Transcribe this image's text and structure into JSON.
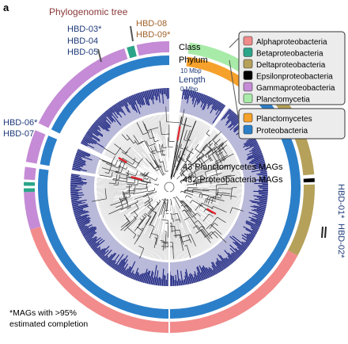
{
  "panel_letter": "a",
  "title": "Phylogenomic tree",
  "labels": {
    "hbd_top_left": [
      "HBD-03*",
      "HBD-04",
      "HBD-05"
    ],
    "hbd_top_right": [
      "HBD-08",
      "HBD-09*"
    ],
    "hbd_left": [
      "HBD-06*",
      "HBD-07"
    ],
    "hbd_right": [
      "HBD-01*",
      "HBD-02*"
    ]
  },
  "track_labels": {
    "class": "Class",
    "phylum": "Phylum",
    "length_max": "10 Mbp",
    "length": "Length",
    "length_min": "0 Mbp"
  },
  "legend_class": [
    {
      "label": "Alphaproteobacteria",
      "color": "#f28b8b"
    },
    {
      "label": "Betaproteobacteria",
      "color": "#2aa589"
    },
    {
      "label": "Deltaproteobacteria",
      "color": "#b5a15a"
    },
    {
      "label": "Epsilonproteobacteria",
      "color": "#000000"
    },
    {
      "label": "Gammaproteobacteria",
      "color": "#c58bd6"
    },
    {
      "label": "Planctomycetia",
      "color": "#a8eba8"
    }
  ],
  "legend_phylum": [
    {
      "label": "Planctomycetes",
      "color": "#f6a12b"
    },
    {
      "label": "Proteobacteria",
      "color": "#2b7fc9"
    }
  ],
  "center_text": [
    "43 Planctomycetes MAGs",
    "432 Proteobacteria MAGs"
  ],
  "footnote": [
    "*MAGs with >95%",
    "estimated completion"
  ],
  "colors": {
    "title": "#8b3a3a",
    "hbd": "#1f3a7a",
    "length_bars": "#1a237e",
    "length_bg": "#b9b9d9",
    "tree": "#333333",
    "highlight": "#e0202a"
  }
}
